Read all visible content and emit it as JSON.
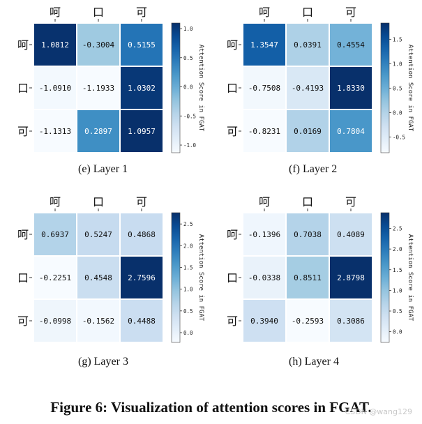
{
  "chart_data": [
    {
      "type": "heatmap",
      "caption": "(e) Layer 1",
      "x_labels": [
        "呵",
        "口",
        "可"
      ],
      "y_labels": [
        "呵",
        "口",
        "可"
      ],
      "values": [
        [
          1.0812,
          -0.3004,
          0.5155
        ],
        [
          -1.091,
          -1.1933,
          1.0302
        ],
        [
          -1.1313,
          0.2897,
          1.0957
        ]
      ],
      "value_labels": [
        [
          "1.0812",
          "-0.3004",
          "0.5155"
        ],
        [
          "-1.0910",
          "-1.1933",
          "1.0302"
        ],
        [
          "-1.1313",
          "0.2897",
          "1.0957"
        ]
      ],
      "colorbar_label": "Attention Score in FGAT",
      "colorbar_ticks": [
        "1.0",
        "0.5",
        "0.0",
        "-0.5",
        "-1.0"
      ],
      "colorbar_tick_values": [
        1.0,
        0.5,
        0.0,
        -0.5,
        -1.0
      ],
      "vmin": -1.1313,
      "vmax": 1.0957,
      "colormap": "Blues"
    },
    {
      "type": "heatmap",
      "caption": "(f) Layer 2",
      "x_labels": [
        "呵",
        "口",
        "可"
      ],
      "y_labels": [
        "呵",
        "口",
        "可"
      ],
      "values": [
        [
          1.3547,
          0.0391,
          0.4554
        ],
        [
          -0.7508,
          -0.4193,
          1.833
        ],
        [
          -0.8231,
          0.0169,
          0.7804
        ]
      ],
      "value_labels": [
        [
          "1.3547",
          "0.0391",
          "0.4554"
        ],
        [
          "-0.7508",
          "-0.4193",
          "1.8330"
        ],
        [
          "-0.8231",
          "0.0169",
          "0.7804"
        ]
      ],
      "colorbar_label": "Attention Score in FGAT",
      "colorbar_ticks": [
        "1.5",
        "1.0",
        "0.5",
        "0.0",
        "-0.5"
      ],
      "colorbar_tick_values": [
        1.5,
        1.0,
        0.5,
        0.0,
        -0.5
      ],
      "vmin": -0.8231,
      "vmax": 1.833,
      "colormap": "Blues"
    },
    {
      "type": "heatmap",
      "caption": "(g) Layer 3",
      "x_labels": [
        "呵",
        "口",
        "可"
      ],
      "y_labels": [
        "呵",
        "口",
        "可"
      ],
      "values": [
        [
          0.6937,
          0.5247,
          0.4868
        ],
        [
          -0.2251,
          0.4548,
          2.7596
        ],
        [
          -0.0998,
          -0.1562,
          0.4488
        ]
      ],
      "value_labels": [
        [
          "0.6937",
          "0.5247",
          "0.4868"
        ],
        [
          "-0.2251",
          "0.4548",
          "2.7596"
        ],
        [
          "-0.0998",
          "-0.1562",
          "0.4488"
        ]
      ],
      "colorbar_label": "Attention Score in FGAT",
      "colorbar_ticks": [
        "2.5",
        "2.0",
        "1.5",
        "1.0",
        "0.5",
        "0.0"
      ],
      "colorbar_tick_values": [
        2.5,
        2.0,
        1.5,
        1.0,
        0.5,
        0.0
      ],
      "vmin": -0.2251,
      "vmax": 2.7596,
      "colormap": "Blues"
    },
    {
      "type": "heatmap",
      "caption": "(h) Layer 4",
      "x_labels": [
        "呵",
        "口",
        "可"
      ],
      "y_labels": [
        "呵",
        "口",
        "可"
      ],
      "values": [
        [
          -0.1396,
          0.7038,
          0.4089
        ],
        [
          -0.0338,
          0.8511,
          2.8798
        ],
        [
          0.394,
          -0.2593,
          0.3086
        ]
      ],
      "value_labels": [
        [
          "-0.1396",
          "0.7038",
          "0.4089"
        ],
        [
          "-0.0338",
          "0.8511",
          "2.8798"
        ],
        [
          "0.3940",
          "-0.2593",
          "0.3086"
        ]
      ],
      "colorbar_label": "Attention Score in FGAT",
      "colorbar_ticks": [
        "2.5",
        "2.0",
        "1.5",
        "1.0",
        "0.5",
        "0.0"
      ],
      "colorbar_tick_values": [
        2.5,
        2.0,
        1.5,
        1.0,
        0.5,
        0.0
      ],
      "vmin": -0.2593,
      "vmax": 2.8798,
      "colormap": "Blues"
    }
  ],
  "figure_caption": "Figure 6: Visualization of attention scores in FGAT.",
  "watermark": "CSDN @wang129"
}
